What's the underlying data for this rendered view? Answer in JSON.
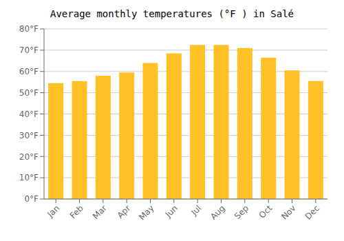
{
  "chart_data": {
    "type": "bar",
    "title": "Average monthly temperatures (°F ) in Salé",
    "categories": [
      "Jan",
      "Feb",
      "Mar",
      "Apr",
      "May",
      "Jun",
      "Jul",
      "Aug",
      "Sep",
      "Oct",
      "Nov",
      "Dec"
    ],
    "values": [
      54.5,
      55.5,
      58.0,
      59.5,
      64.0,
      68.5,
      72.5,
      72.5,
      71.0,
      66.5,
      60.5,
      55.5
    ],
    "color": "#FFC125",
    "ylim": [
      0,
      80
    ],
    "yticks": [
      {
        "value": 0,
        "label": "0°F"
      },
      {
        "value": 10,
        "label": "10°F"
      },
      {
        "value": 20,
        "label": "20°F"
      },
      {
        "value": 30,
        "label": "30°F"
      },
      {
        "value": 40,
        "label": "40°F"
      },
      {
        "value": 50,
        "label": "50°F"
      },
      {
        "value": 60,
        "label": "60°F"
      },
      {
        "value": 70,
        "label": "70°F"
      },
      {
        "value": 80,
        "label": "80°F"
      }
    ],
    "grid": true
  }
}
